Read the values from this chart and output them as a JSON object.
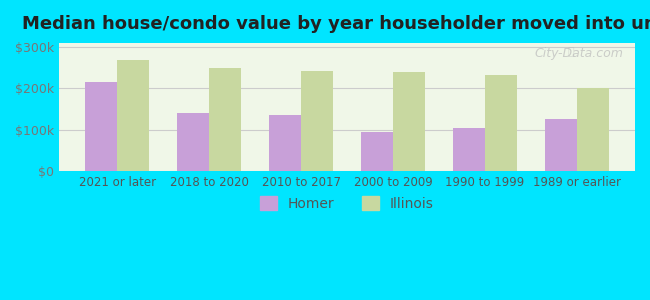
{
  "title": "Median house/condo value by year householder moved into unit",
  "categories": [
    "2021 or later",
    "2018 to 2020",
    "2010 to 2017",
    "2000 to 2009",
    "1990 to 1999",
    "1989 or earlier"
  ],
  "homer_values": [
    215000,
    140000,
    135000,
    95000,
    103000,
    125000
  ],
  "illinois_values": [
    268000,
    250000,
    242000,
    240000,
    232000,
    200000
  ],
  "homer_color": "#C8A0D8",
  "illinois_color": "#C8D8A0",
  "background_outer": "#00E5FF",
  "background_inner": "#f0f7e8",
  "yticks": [
    0,
    100000,
    200000,
    300000
  ],
  "ytick_labels": [
    "$0",
    "$100k",
    "$200k",
    "$300k"
  ],
  "ylim": [
    0,
    310000
  ],
  "bar_width": 0.35,
  "legend_homer": "Homer",
  "legend_illinois": "Illinois",
  "watermark": "City-Data.com"
}
